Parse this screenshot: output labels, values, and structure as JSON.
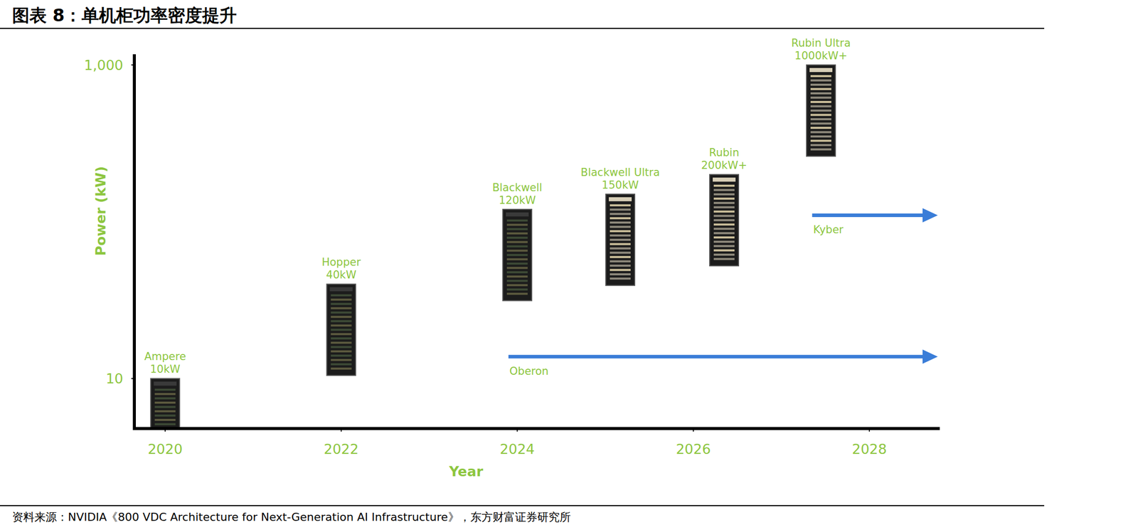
{
  "chart_data": {
    "type": "scatter",
    "title": "图表 8：单机柜功率密度提升",
    "source": "资料来源：NVIDIA《800 VDC Architecture for Next-Generation AI Infrastructure》，东方财富证券研究所",
    "x_label": "Year",
    "y_label": "Power (kW)",
    "x": [
      2020,
      2022,
      2024,
      2025.17,
      2026.35,
      2027.45
    ],
    "values": [
      10,
      40,
      120,
      150,
      200,
      1000
    ],
    "point_labels": [
      "Ampere",
      "Hopper",
      "Blackwell",
      "Blackwell Ultra",
      "Rubin",
      "Rubin Ultra"
    ],
    "value_labels": [
      "10kW",
      "40kW",
      "120kW",
      "150kW",
      "200kW+",
      "1000kW+"
    ],
    "data_labels": true,
    "marker": "rack",
    "color": "#8dc63f",
    "log": "y",
    "grid": false,
    "xlim": [
      2019.65,
      2028.8
    ],
    "ylim": [
      4.8,
      1170
    ],
    "xticks": [
      2020,
      2022,
      2024,
      2026,
      2028
    ],
    "yticks": [
      10,
      {
        "value": 1000,
        "label": "1,000"
      }
    ],
    "annotations": [
      {
        "text": "Oberon",
        "x": 2023.9,
        "y": 13.8
      },
      {
        "text": "Kyber",
        "x": 2027.35,
        "y": 110
      }
    ]
  }
}
